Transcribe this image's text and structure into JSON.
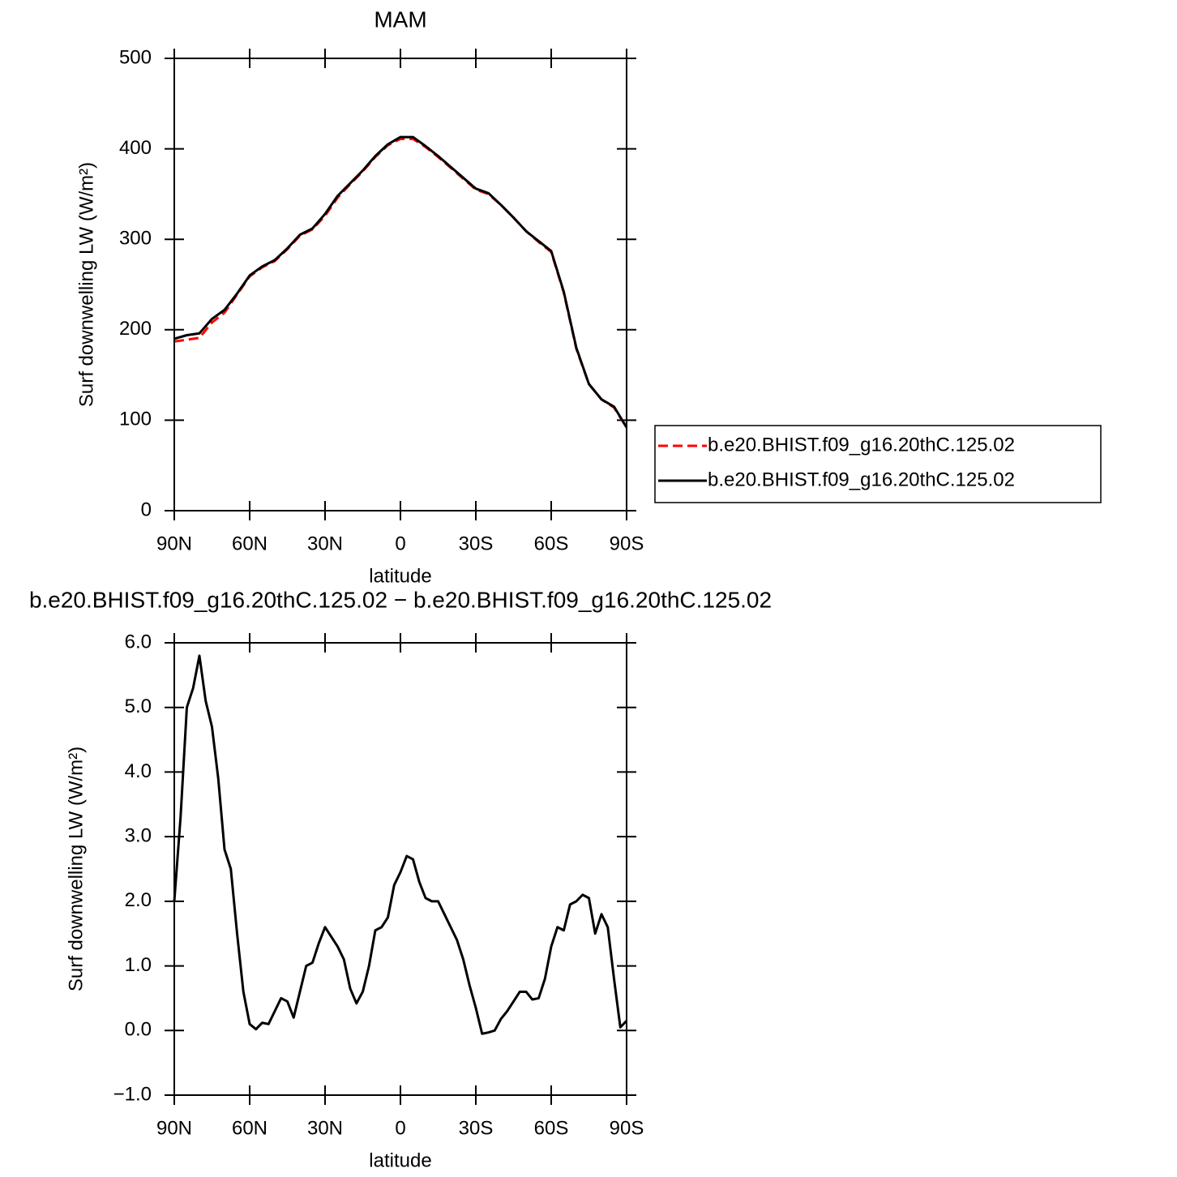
{
  "chart_data": [
    {
      "type": "line",
      "title": "MAM",
      "xlabel": "latitude",
      "ylabel": "Surf downwelling LW (W/m²)",
      "x": [
        90,
        85,
        80,
        75,
        70,
        65,
        60,
        55,
        50,
        45,
        40,
        35,
        30,
        25,
        20,
        15,
        10,
        5,
        0,
        -5,
        -10,
        -15,
        -20,
        -25,
        -30,
        -35,
        -40,
        -45,
        -50,
        -55,
        -60,
        -65,
        -70,
        -75,
        -80,
        -85,
        -90
      ],
      "series": [
        {
          "name": "b.e20.BHIST.f09_g16.20thC.125.02",
          "color": "#ff0000",
          "linestyle": "dashed",
          "values": [
            187,
            189,
            191,
            208,
            219,
            239,
            259,
            269,
            276,
            289,
            304,
            311,
            326,
            346,
            361,
            375,
            391,
            404,
            411,
            411,
            402,
            391,
            379,
            367,
            355,
            350,
            338,
            324,
            309,
            297,
            286,
            241,
            179,
            140,
            123,
            114,
            92
          ]
        },
        {
          "name": "b.e20.BHIST.f09_g16.20thC.125.02",
          "color": "#000000",
          "linestyle": "solid",
          "values": [
            190,
            194,
            196,
            212,
            222,
            240,
            260,
            270,
            277,
            290,
            305,
            312,
            328,
            348,
            362,
            376,
            392,
            405,
            413,
            413,
            403,
            392,
            380,
            368,
            356,
            351,
            338,
            324,
            309,
            298,
            287,
            242,
            180,
            140,
            123,
            115,
            92
          ]
        }
      ],
      "xlim": [
        90,
        -90
      ],
      "xticks": [
        {
          "value": 90,
          "label": "90N"
        },
        {
          "value": 60,
          "label": "60N"
        },
        {
          "value": 30,
          "label": "30N"
        },
        0,
        {
          "value": -30,
          "label": "30S"
        },
        {
          "value": -60,
          "label": "60S"
        },
        {
          "value": -90,
          "label": "90S"
        }
      ],
      "ylim": [
        0,
        500
      ],
      "yticks": [
        0,
        100,
        200,
        300,
        400,
        500
      ],
      "legend": "right"
    },
    {
      "type": "line",
      "title": "b.e20.BHIST.f09_g16.20thC.125.02 − b.e20.BHIST.f09_g16.20thC.125.02",
      "xlabel": "latitude",
      "ylabel": "Surf downwelling LW (W/m²)",
      "x": [
        90,
        87.5,
        85,
        82.5,
        80,
        77.5,
        75,
        72.5,
        70,
        67.5,
        65,
        62.5,
        60,
        57.5,
        55,
        52.5,
        50,
        47.5,
        45,
        42.5,
        40,
        37.5,
        35,
        32.5,
        30,
        27.5,
        25,
        22.5,
        20,
        17.5,
        15,
        12.5,
        10,
        7.5,
        5,
        2.5,
        0,
        -2.5,
        -5,
        -7.5,
        -10,
        -12.5,
        -15,
        -17.5,
        -20,
        -22.5,
        -25,
        -27.5,
        -30,
        -32.5,
        -35,
        -37.5,
        -40,
        -42.5,
        -45,
        -47.5,
        -50,
        -52.5,
        -55,
        -57.5,
        -60,
        -62.5,
        -65,
        -67.5,
        -70,
        -72.5,
        -75,
        -77.5,
        -80,
        -82.5,
        -85,
        -87.5,
        -90
      ],
      "values": [
        2.0,
        3.3,
        5.0,
        5.3,
        5.8,
        5.1,
        4.7,
        3.9,
        2.8,
        2.5,
        1.5,
        0.6,
        0.1,
        0.02,
        0.12,
        0.1,
        0.3,
        0.5,
        0.45,
        0.2,
        0.6,
        1.0,
        1.05,
        1.35,
        1.6,
        1.45,
        1.3,
        1.1,
        0.65,
        0.42,
        0.6,
        1.0,
        1.55,
        1.6,
        1.75,
        2.25,
        2.45,
        2.7,
        2.65,
        2.3,
        2.05,
        2.0,
        2.0,
        1.8,
        1.6,
        1.4,
        1.1,
        0.7,
        0.35,
        -0.05,
        -0.03,
        0.0,
        0.18,
        0.3,
        0.45,
        0.6,
        0.6,
        0.48,
        0.5,
        0.8,
        1.3,
        1.6,
        1.55,
        1.95,
        2.0,
        2.1,
        2.05,
        1.5,
        1.8,
        1.6,
        0.8,
        0.05,
        0.15
      ],
      "color": "#000000",
      "xlim": [
        90,
        -90
      ],
      "xticks": [
        {
          "value": 90,
          "label": "90N"
        },
        {
          "value": 60,
          "label": "60N"
        },
        {
          "value": 30,
          "label": "30N"
        },
        0,
        {
          "value": -30,
          "label": "30S"
        },
        {
          "value": -60,
          "label": "60S"
        },
        {
          "value": -90,
          "label": "90S"
        }
      ],
      "ylim": [
        -1,
        6
      ],
      "yticks": [
        {
          "value": -1,
          "label": "−1.0"
        },
        {
          "value": 0,
          "label": "0.0"
        },
        {
          "value": 1,
          "label": "1.0"
        },
        {
          "value": 2,
          "label": "2.0"
        },
        {
          "value": 3,
          "label": "3.0"
        },
        {
          "value": 4,
          "label": "4.0"
        },
        {
          "value": 5,
          "label": "5.0"
        },
        {
          "value": 6,
          "label": "6.0"
        }
      ]
    }
  ]
}
